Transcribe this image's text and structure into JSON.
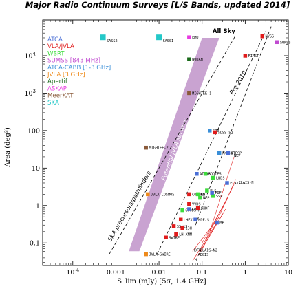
{
  "chart_data": {
    "type": "scatter",
    "title": "Major Radio Continuum Surveys [L/S Bands, updated 2014]",
    "xlabel": "S_lim (mJy) [5σ, 1.4 GHz]",
    "ylabel": "Area (deg²)",
    "xscale": "log",
    "yscale": "log",
    "xlim": [
      2e-05,
      10
    ],
    "ylim": [
      0.025,
      90000
    ],
    "x_ticks": [
      {
        "value": 0.0001,
        "label": "10^-4"
      },
      {
        "value": 0.001,
        "label": "0.001"
      },
      {
        "value": 0.01,
        "label": "0.01"
      },
      {
        "value": 0.1,
        "label": "0.1"
      },
      {
        "value": 1,
        "label": "1"
      },
      {
        "value": 10,
        "label": "10"
      }
    ],
    "y_ticks": [
      {
        "value": 0.1,
        "label": "0.1"
      },
      {
        "value": 1,
        "label": "1"
      },
      {
        "value": 10,
        "label": "10"
      },
      {
        "value": 100,
        "label": "100"
      },
      {
        "value": 1000,
        "label": "10^3"
      },
      {
        "value": 10000,
        "label": "10^4"
      }
    ],
    "legend_position": "top-left",
    "legend": [
      {
        "name": "ATCA",
        "color": "#4a6fd6"
      },
      {
        "name": "VLA/JVLA",
        "color": "#e01b1b"
      },
      {
        "name": "WSRT",
        "color": "#3ddc3d"
      },
      {
        "name": "SUMSS [843 MHz]",
        "color": "#c04ad0"
      },
      {
        "name": "ATCA-CABB [1-3 GHz]",
        "color": "#3a8fd8"
      },
      {
        "name": "JVLA [3 GHz]",
        "color": "#ee8a1a"
      },
      {
        "name": "Apertif",
        "color": "#1a6a1a"
      },
      {
        "name": "ASKAP",
        "color": "#e83ae0"
      },
      {
        "name": "MeerKAT",
        "color": "#8a5a3a"
      },
      {
        "name": "SKA",
        "color": "#24c8c8"
      }
    ],
    "annotations": [
      "All Sky",
      "Potential JVLA surveys",
      "Pre-2010",
      "SKA precursors/pathfinders"
    ],
    "points": [
      {
        "label": "SASS2",
        "x": 0.0005,
        "y": 31000,
        "color": "#24c8c8",
        "size": "large"
      },
      {
        "label": "SASS1",
        "x": 0.01,
        "y": 31000,
        "color": "#24c8c8",
        "size": "large"
      },
      {
        "label": "EMU",
        "x": 0.05,
        "y": 31000,
        "color": "#e83ae0"
      },
      {
        "label": "WODAN",
        "x": 0.05,
        "y": 8000,
        "color": "#1a6a1a"
      },
      {
        "label": "NVSS",
        "x": 2.5,
        "y": 33000,
        "color": "#e01b1b"
      },
      {
        "label": "SUMSS",
        "x": 5.5,
        "y": 23000,
        "color": "#c04ad0"
      },
      {
        "label": "FIRST",
        "x": 1.0,
        "y": 10000,
        "color": "#e01b1b"
      },
      {
        "label": "MIGHTEE-1",
        "x": 0.05,
        "y": 1000,
        "color": "#8a5a3a"
      },
      {
        "label": "S77",
        "x": 0.15,
        "y": 100,
        "color": "#3a8fd8"
      },
      {
        "label": "SDSS-S2",
        "x": 0.2,
        "y": 90,
        "color": "#e01b1b"
      },
      {
        "label": "MIGHTEE-2",
        "x": 0.005,
        "y": 35,
        "color": "#8a5a3a"
      },
      {
        "label": "XXL-S",
        "x": 0.25,
        "y": 25,
        "color": "#3a8fd8"
      },
      {
        "label": "ATESP",
        "x": 0.4,
        "y": 25,
        "color": "#4a6fd6"
      },
      {
        "label": "ATLAS",
        "x": 0.075,
        "y": 7,
        "color": "#4a6fd6"
      },
      {
        "label": "BOOTES",
        "x": 0.12,
        "y": 7,
        "color": "#3ddc3d"
      },
      {
        "label": "LBDS",
        "x": 0.18,
        "y": 5.5,
        "color": "#3ddc3d"
      },
      {
        "label": "ELAIS-S",
        "x": 0.38,
        "y": 4,
        "color": "#4a6fd6"
      },
      {
        "label": "JVLA-COSMOS",
        "x": 0.0055,
        "y": 2,
        "color": "#ee8a1a"
      },
      {
        "label": "COSMOS",
        "x": 0.05,
        "y": 2,
        "color": "#e01b1b"
      },
      {
        "label": "LH",
        "x": 0.08,
        "y": 2,
        "color": "#3ddc3d"
      },
      {
        "label": "FLS",
        "x": 0.13,
        "y": 2.5,
        "color": "#3ddc3d"
      },
      {
        "label": "NEP",
        "x": 0.09,
        "y": 1.6,
        "color": "#3ddc3d"
      },
      {
        "label": "SSP",
        "x": 0.18,
        "y": 1.8,
        "color": "#3ddc3d"
      },
      {
        "label": "FDF",
        "x": 0.17,
        "y": 2.2,
        "color": "#4a6fd6"
      },
      {
        "label": "VVDS",
        "x": 0.05,
        "y": 1.1,
        "color": "#e01b1b"
      },
      {
        "label": "GOODS-N",
        "x": 0.035,
        "y": 0.75,
        "color": "#3ddc3d"
      },
      {
        "label": "CDFS",
        "x": 0.05,
        "y": 0.8,
        "color": "#4a6fd6"
      },
      {
        "label": "SXDF",
        "x": 0.08,
        "y": 0.85,
        "color": "#e01b1b"
      },
      {
        "label": "LHEX",
        "x": 0.032,
        "y": 0.42,
        "color": "#e01b1b"
      },
      {
        "label": "HDF-S",
        "x": 0.07,
        "y": 0.42,
        "color": "#4a6fd6"
      },
      {
        "label": "SSA13",
        "x": 0.022,
        "y": 0.28,
        "color": "#e01b1b"
      },
      {
        "label": "13H",
        "x": 0.035,
        "y": 0.25,
        "color": "#e01b1b"
      },
      {
        "label": "MP",
        "x": 0.22,
        "y": 0.35,
        "color": "#4a6fd6"
      },
      {
        "label": "SWIRE",
        "x": 0.0145,
        "y": 0.14,
        "color": "#e01b1b"
      },
      {
        "label": "LH-XMM",
        "x": 0.025,
        "y": 0.17,
        "color": "#e01b1b"
      },
      {
        "label": "JVLA-SWIRE",
        "x": 0.005,
        "y": 0.05,
        "color": "#ee8a1a"
      }
    ],
    "plain_labels": [
      {
        "label": "HDFN",
        "x": 0.06,
        "y": 0.06
      },
      {
        "label": "ELAIS-N2",
        "x": 0.09,
        "y": 0.06
      },
      {
        "label": "AEGIS",
        "x": 0.08,
        "y": 0.045
      },
      {
        "label": "LH",
        "x": 0.06,
        "y": 0.033
      },
      {
        "label": "NEP",
        "x": 0.55,
        "y": 20
      },
      {
        "label": "ELAIS-N",
        "x": 0.7,
        "y": 3.8
      }
    ]
  }
}
